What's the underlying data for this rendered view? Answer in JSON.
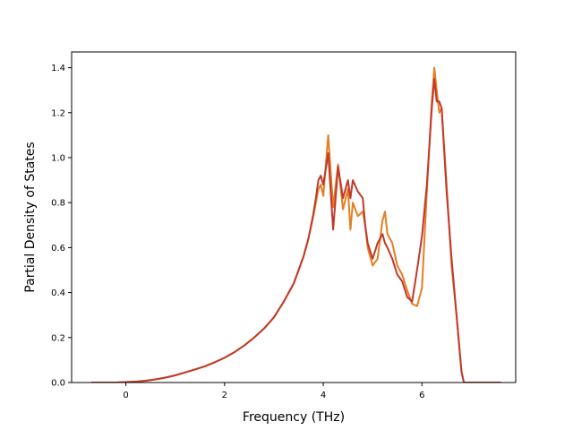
{
  "chart_data": {
    "type": "line",
    "title": "",
    "xlabel": "Frequency (THz)",
    "ylabel": "Partial Density of States",
    "xlim": [
      -1.1,
      7.9
    ],
    "ylim": [
      0.0,
      1.47
    ],
    "xticks": [
      0,
      2,
      4,
      6
    ],
    "yticks": [
      0.0,
      0.2,
      0.4,
      0.6,
      0.8,
      1.0,
      1.2,
      1.4
    ],
    "xtick_labels": [
      "0",
      "2",
      "4",
      "6"
    ],
    "ytick_labels": [
      "0.0",
      "0.2",
      "0.4",
      "0.6",
      "0.8",
      "1.0",
      "1.2",
      "1.4"
    ],
    "grid": false,
    "legend": false,
    "series": [
      {
        "color": "#e67e22",
        "x": [
          -0.7,
          -0.2,
          0.0,
          0.2,
          0.4,
          0.6,
          0.8,
          1.0,
          1.2,
          1.4,
          1.6,
          1.8,
          2.0,
          2.2,
          2.4,
          2.6,
          2.8,
          3.0,
          3.2,
          3.4,
          3.6,
          3.7,
          3.8,
          3.85,
          3.9,
          3.95,
          4.0,
          4.1,
          4.2,
          4.3,
          4.4,
          4.5,
          4.55,
          4.6,
          4.7,
          4.8,
          4.85,
          4.9,
          5.0,
          5.1,
          5.2,
          5.25,
          5.3,
          5.4,
          5.5,
          5.6,
          5.7,
          5.8,
          5.9,
          6.0,
          6.1,
          6.2,
          6.25,
          6.3,
          6.35,
          6.4,
          6.5,
          6.6,
          6.7,
          6.8,
          6.85,
          6.9,
          7.0,
          7.6
        ],
        "values": [
          0.0,
          0.0,
          0.002,
          0.004,
          0.008,
          0.014,
          0.022,
          0.032,
          0.045,
          0.058,
          0.072,
          0.09,
          0.11,
          0.135,
          0.165,
          0.2,
          0.24,
          0.29,
          0.36,
          0.44,
          0.56,
          0.64,
          0.74,
          0.8,
          0.86,
          0.88,
          0.83,
          1.1,
          0.78,
          0.97,
          0.77,
          0.86,
          0.68,
          0.8,
          0.74,
          0.76,
          0.7,
          0.6,
          0.52,
          0.55,
          0.72,
          0.76,
          0.66,
          0.62,
          0.52,
          0.48,
          0.41,
          0.35,
          0.34,
          0.42,
          0.85,
          1.25,
          1.4,
          1.3,
          1.2,
          1.22,
          0.88,
          0.52,
          0.3,
          0.05,
          0.0,
          0.0,
          0.0,
          0.0
        ]
      },
      {
        "color": "#c0392b",
        "x": [
          -0.7,
          -0.2,
          0.0,
          0.2,
          0.4,
          0.6,
          0.8,
          1.0,
          1.2,
          1.4,
          1.6,
          1.8,
          2.0,
          2.2,
          2.4,
          2.6,
          2.8,
          3.0,
          3.2,
          3.4,
          3.6,
          3.7,
          3.8,
          3.85,
          3.9,
          3.95,
          4.0,
          4.1,
          4.2,
          4.3,
          4.4,
          4.5,
          4.55,
          4.6,
          4.7,
          4.8,
          4.85,
          4.9,
          5.0,
          5.1,
          5.2,
          5.25,
          5.3,
          5.4,
          5.5,
          5.6,
          5.7,
          5.8,
          5.9,
          6.0,
          6.1,
          6.2,
          6.25,
          6.3,
          6.35,
          6.4,
          6.5,
          6.6,
          6.7,
          6.8,
          6.85,
          6.9,
          7.0,
          7.6
        ],
        "values": [
          0.0,
          0.0,
          0.002,
          0.004,
          0.008,
          0.014,
          0.022,
          0.032,
          0.045,
          0.058,
          0.072,
          0.09,
          0.11,
          0.135,
          0.165,
          0.2,
          0.24,
          0.29,
          0.36,
          0.44,
          0.56,
          0.64,
          0.75,
          0.82,
          0.9,
          0.92,
          0.88,
          1.02,
          0.68,
          0.96,
          0.82,
          0.9,
          0.82,
          0.9,
          0.85,
          0.82,
          0.7,
          0.62,
          0.55,
          0.62,
          0.66,
          0.62,
          0.6,
          0.55,
          0.48,
          0.45,
          0.38,
          0.36,
          0.5,
          0.65,
          0.88,
          1.22,
          1.35,
          1.25,
          1.25,
          1.22,
          0.85,
          0.55,
          0.3,
          0.05,
          0.0,
          0.0,
          0.0,
          0.0
        ]
      }
    ]
  }
}
